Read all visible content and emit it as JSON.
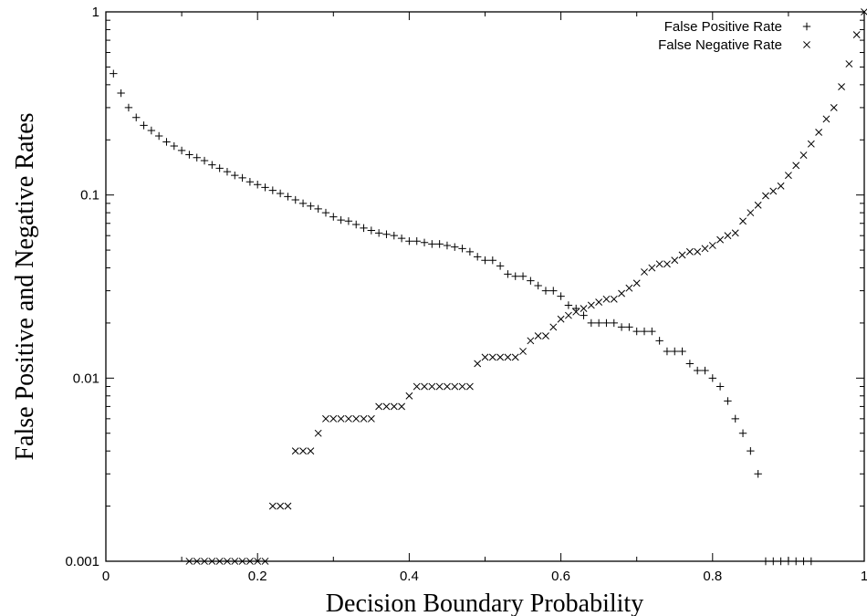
{
  "chart_data": {
    "type": "scatter",
    "xlabel": "Decision Boundary Probability",
    "ylabel": "False Positive and Negative Rates",
    "xlim": [
      0,
      1
    ],
    "ylim": [
      0.001,
      1
    ],
    "yscale": "log",
    "xticks": [
      0,
      0.2,
      0.4,
      0.6,
      0.8,
      1
    ],
    "xtick_labels": [
      "0",
      "0.2",
      "0.4",
      "0.6",
      "0.8",
      "1"
    ],
    "yticks": [
      0.001,
      0.01,
      0.1,
      1
    ],
    "ytick_labels": [
      "0.001",
      "0.01",
      "0.1",
      "1"
    ],
    "grid": false,
    "legend_position": "top-right",
    "series": [
      {
        "name": "False Positive Rate",
        "marker": "plus",
        "color": "#000000",
        "x": [
          0.01,
          0.02,
          0.03,
          0.04,
          0.05,
          0.06,
          0.07,
          0.08,
          0.09,
          0.1,
          0.11,
          0.12,
          0.13,
          0.14,
          0.15,
          0.16,
          0.17,
          0.18,
          0.19,
          0.2,
          0.21,
          0.22,
          0.23,
          0.24,
          0.25,
          0.26,
          0.27,
          0.28,
          0.29,
          0.3,
          0.31,
          0.32,
          0.33,
          0.34,
          0.35,
          0.36,
          0.37,
          0.38,
          0.39,
          0.4,
          0.41,
          0.42,
          0.43,
          0.44,
          0.45,
          0.46,
          0.47,
          0.48,
          0.49,
          0.5,
          0.51,
          0.52,
          0.53,
          0.54,
          0.55,
          0.56,
          0.57,
          0.58,
          0.59,
          0.6,
          0.61,
          0.62,
          0.63,
          0.64,
          0.65,
          0.66,
          0.67,
          0.68,
          0.69,
          0.7,
          0.71,
          0.72,
          0.73,
          0.74,
          0.75,
          0.76,
          0.77,
          0.78,
          0.79,
          0.8,
          0.81,
          0.82,
          0.83,
          0.84,
          0.85,
          0.86,
          0.87,
          0.88,
          0.89,
          0.9,
          0.91,
          0.92,
          0.93
        ],
        "y": [
          0.46,
          0.36,
          0.3,
          0.265,
          0.24,
          0.225,
          0.21,
          0.195,
          0.185,
          0.175,
          0.166,
          0.16,
          0.154,
          0.146,
          0.14,
          0.134,
          0.128,
          0.124,
          0.118,
          0.114,
          0.11,
          0.106,
          0.102,
          0.098,
          0.094,
          0.09,
          0.087,
          0.084,
          0.08,
          0.076,
          0.073,
          0.072,
          0.069,
          0.066,
          0.064,
          0.062,
          0.061,
          0.06,
          0.058,
          0.056,
          0.056,
          0.055,
          0.054,
          0.054,
          0.053,
          0.052,
          0.051,
          0.049,
          0.046,
          0.044,
          0.044,
          0.041,
          0.037,
          0.036,
          0.036,
          0.034,
          0.032,
          0.03,
          0.03,
          0.028,
          0.025,
          0.024,
          0.022,
          0.02,
          0.02,
          0.02,
          0.02,
          0.019,
          0.019,
          0.018,
          0.018,
          0.018,
          0.016,
          0.014,
          0.014,
          0.014,
          0.012,
          0.011,
          0.011,
          0.01,
          0.009,
          0.0075,
          0.006,
          0.005,
          0.004,
          0.003,
          0.001,
          0.001,
          0.001,
          0.001,
          0.001,
          0.001,
          0.001
        ]
      },
      {
        "name": "False Negative Rate",
        "marker": "cross",
        "color": "#000000",
        "x": [
          0.11,
          0.12,
          0.13,
          0.14,
          0.15,
          0.16,
          0.17,
          0.18,
          0.19,
          0.2,
          0.21,
          0.22,
          0.23,
          0.24,
          0.25,
          0.26,
          0.27,
          0.28,
          0.29,
          0.3,
          0.31,
          0.32,
          0.33,
          0.34,
          0.35,
          0.36,
          0.37,
          0.38,
          0.39,
          0.4,
          0.41,
          0.42,
          0.43,
          0.44,
          0.45,
          0.46,
          0.47,
          0.48,
          0.49,
          0.5,
          0.51,
          0.52,
          0.53,
          0.54,
          0.55,
          0.56,
          0.57,
          0.58,
          0.59,
          0.6,
          0.61,
          0.62,
          0.63,
          0.64,
          0.65,
          0.66,
          0.67,
          0.68,
          0.69,
          0.7,
          0.71,
          0.72,
          0.73,
          0.74,
          0.75,
          0.76,
          0.77,
          0.78,
          0.79,
          0.8,
          0.81,
          0.82,
          0.83,
          0.84,
          0.85,
          0.86,
          0.87,
          0.88,
          0.89,
          0.9,
          0.91,
          0.92,
          0.93,
          0.94,
          0.95,
          0.96,
          0.97,
          0.98,
          0.99,
          1.0
        ],
        "y": [
          0.001,
          0.001,
          0.001,
          0.001,
          0.001,
          0.001,
          0.001,
          0.001,
          0.001,
          0.001,
          0.001,
          0.002,
          0.002,
          0.002,
          0.004,
          0.004,
          0.004,
          0.005,
          0.006,
          0.006,
          0.006,
          0.006,
          0.006,
          0.006,
          0.006,
          0.007,
          0.007,
          0.007,
          0.007,
          0.008,
          0.009,
          0.009,
          0.009,
          0.009,
          0.009,
          0.009,
          0.009,
          0.009,
          0.012,
          0.013,
          0.013,
          0.013,
          0.013,
          0.013,
          0.014,
          0.016,
          0.017,
          0.017,
          0.019,
          0.021,
          0.022,
          0.023,
          0.024,
          0.025,
          0.026,
          0.027,
          0.027,
          0.029,
          0.031,
          0.033,
          0.038,
          0.04,
          0.042,
          0.042,
          0.044,
          0.047,
          0.049,
          0.049,
          0.051,
          0.053,
          0.057,
          0.06,
          0.062,
          0.072,
          0.08,
          0.088,
          0.099,
          0.105,
          0.112,
          0.128,
          0.145,
          0.165,
          0.19,
          0.22,
          0.26,
          0.3,
          0.39,
          0.52,
          0.75,
          1.0
        ]
      }
    ]
  }
}
